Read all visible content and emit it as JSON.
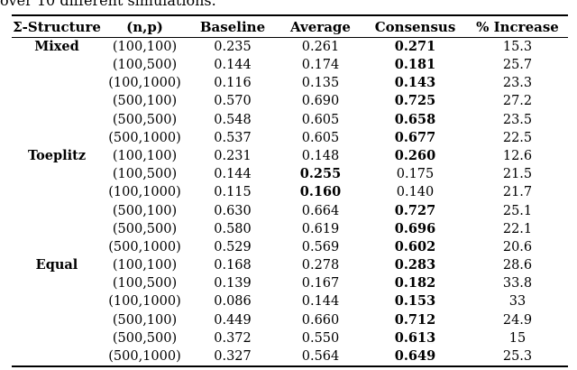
{
  "caption_fragment": "over 10 different simulations.",
  "table": {
    "headers": [
      "Σ-Structure",
      "(n,p)",
      "Baseline",
      "Average",
      "Consensus",
      "% Increase"
    ],
    "rows": [
      {
        "structure": "Mixed",
        "np": "(100,100)",
        "baseline": "0.235",
        "average": "0.261",
        "consensus": "0.271",
        "increase": "15.3",
        "bold": "consensus"
      },
      {
        "structure": "",
        "np": "(100,500)",
        "baseline": "0.144",
        "average": "0.174",
        "consensus": "0.181",
        "increase": "25.7",
        "bold": "consensus"
      },
      {
        "structure": "",
        "np": "(100,1000)",
        "baseline": "0.116",
        "average": "0.135",
        "consensus": "0.143",
        "increase": "23.3",
        "bold": "consensus"
      },
      {
        "structure": "",
        "np": "(500,100)",
        "baseline": "0.570",
        "average": "0.690",
        "consensus": "0.725",
        "increase": "27.2",
        "bold": "consensus"
      },
      {
        "structure": "",
        "np": "(500,500)",
        "baseline": "0.548",
        "average": "0.605",
        "consensus": "0.658",
        "increase": "23.5",
        "bold": "consensus"
      },
      {
        "structure": "",
        "np": "(500,1000)",
        "baseline": "0.537",
        "average": "0.605",
        "consensus": "0.677",
        "increase": "22.5",
        "bold": "consensus"
      },
      {
        "structure": "Toeplitz",
        "np": "(100,100)",
        "baseline": "0.231",
        "average": "0.148",
        "consensus": "0.260",
        "increase": "12.6",
        "bold": "consensus"
      },
      {
        "structure": "",
        "np": "(100,500)",
        "baseline": "0.144",
        "average": "0.255",
        "consensus": "0.175",
        "increase": "21.5",
        "bold": "average"
      },
      {
        "structure": "",
        "np": "(100,1000)",
        "baseline": "0.115",
        "average": "0.160",
        "consensus": "0.140",
        "increase": "21.7",
        "bold": "average"
      },
      {
        "structure": "",
        "np": "(500,100)",
        "baseline": "0.630",
        "average": "0.664",
        "consensus": "0.727",
        "increase": "25.1",
        "bold": "consensus"
      },
      {
        "structure": "",
        "np": "(500,500)",
        "baseline": "0.580",
        "average": "0.619",
        "consensus": "0.696",
        "increase": "22.1",
        "bold": "consensus"
      },
      {
        "structure": "",
        "np": "(500,1000)",
        "baseline": "0.529",
        "average": "0.569",
        "consensus": "0.602",
        "increase": "20.6",
        "bold": "consensus"
      },
      {
        "structure": "Equal",
        "np": "(100,100)",
        "baseline": "0.168",
        "average": "0.278",
        "consensus": "0.283",
        "increase": "28.6",
        "bold": "consensus"
      },
      {
        "structure": "",
        "np": "(100,500)",
        "baseline": "0.139",
        "average": "0.167",
        "consensus": "0.182",
        "increase": "33.8",
        "bold": "consensus"
      },
      {
        "structure": "",
        "np": "(100,1000)",
        "baseline": "0.086",
        "average": "0.144",
        "consensus": "0.153",
        "increase": "33",
        "bold": "consensus"
      },
      {
        "structure": "",
        "np": "(500,100)",
        "baseline": "0.449",
        "average": "0.660",
        "consensus": "0.712",
        "increase": "24.9",
        "bold": "consensus"
      },
      {
        "structure": "",
        "np": "(500,500)",
        "baseline": "0.372",
        "average": "0.550",
        "consensus": "0.613",
        "increase": "15",
        "bold": "consensus"
      },
      {
        "structure": "",
        "np": "(500,1000)",
        "baseline": "0.327",
        "average": "0.564",
        "consensus": "0.649",
        "increase": "25.3",
        "bold": "consensus"
      }
    ]
  }
}
